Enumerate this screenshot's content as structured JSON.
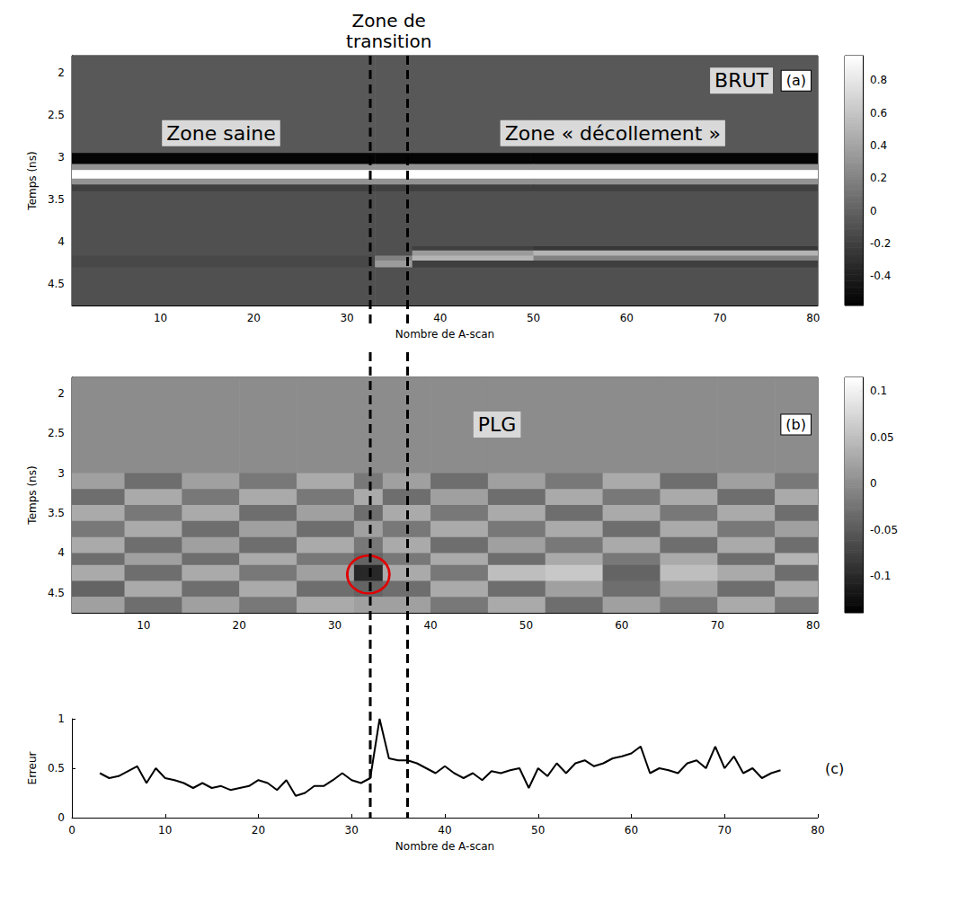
{
  "chart_data": [
    {
      "type": "heatmap",
      "panel": "(a)",
      "text": "BRUT",
      "zones": [
        "Zone saine",
        "Zone de transition",
        "Zone « décollement »"
      ],
      "boundaries": [
        32.5,
        36.5
      ],
      "x_label": "Nombre de A-scan",
      "y_label": "Temps (ns)",
      "xlim": [
        0.5,
        80.5
      ],
      "xticks": [
        10,
        20,
        30,
        40,
        50,
        60,
        70,
        80
      ],
      "ylim": [
        1.8,
        4.75
      ],
      "yticks": [
        2,
        2.5,
        3,
        3.5,
        4,
        4.5
      ],
      "grid": false,
      "cells": {
        "x_edges": [
          0.5,
          33,
          37,
          50,
          80.5
        ],
        "y_edges": [
          1.8,
          2.95,
          3.08,
          3.15,
          3.25,
          3.32,
          3.4,
          4.05,
          4.1,
          4.16,
          4.22,
          4.3,
          4.75
        ],
        "z": [
          [
            -0.05,
            -0.05,
            -0.05,
            -0.05
          ],
          [
            -0.55,
            -0.55,
            -0.55,
            -0.55
          ],
          [
            0.3,
            0.3,
            0.3,
            0.3
          ],
          [
            0.95,
            0.95,
            0.95,
            0.95
          ],
          [
            0.3,
            0.3,
            0.3,
            0.3
          ],
          [
            -0.2,
            -0.2,
            -0.2,
            -0.2
          ],
          [
            -0.1,
            -0.1,
            -0.1,
            -0.1
          ],
          [
            -0.1,
            -0.1,
            -0.2,
            -0.25
          ],
          [
            -0.1,
            -0.1,
            0.35,
            0.5
          ],
          [
            -0.15,
            0.2,
            0.5,
            0.2
          ],
          [
            -0.15,
            0.35,
            -0.2,
            -0.2
          ],
          [
            -0.1,
            -0.1,
            -0.1,
            -0.1
          ]
        ]
      },
      "colorbar": {
        "range": [
          -0.58,
          0.95
        ],
        "ticks": [
          -0.4,
          -0.2,
          0,
          0.2,
          0.4,
          0.6,
          0.8
        ]
      }
    },
    {
      "type": "heatmap",
      "panel": "(b)",
      "text": "PLG",
      "y_label": "Temps (ns)",
      "xlim": [
        2.5,
        80.5
      ],
      "xticks": [
        10,
        20,
        30,
        40,
        50,
        60,
        70,
        80
      ],
      "ylim": [
        1.8,
        4.75
      ],
      "yticks": [
        2,
        2.5,
        3,
        3.5,
        4,
        4.5
      ],
      "grid": false,
      "highlight": {
        "x": 33.5,
        "y": 4.27,
        "color": "#e00000"
      },
      "cells": {
        "x_edges": [
          2.5,
          8,
          14,
          20,
          26,
          32,
          35,
          40,
          46,
          52,
          58,
          64,
          70,
          76,
          80.5
        ],
        "y_edges": [
          1.8,
          3.0,
          3.2,
          3.4,
          3.6,
          3.8,
          4.0,
          4.15,
          4.35,
          4.55,
          4.75
        ],
        "z": [
          [
            0,
            0,
            0,
            0,
            0,
            0,
            0,
            0,
            0,
            0,
            0,
            0,
            0,
            0
          ],
          [
            0.02,
            -0.03,
            0.02,
            -0.02,
            0.03,
            -0.02,
            0.02,
            -0.03,
            0.02,
            -0.02,
            0.03,
            -0.03,
            0.02,
            -0.02
          ],
          [
            -0.03,
            0.03,
            -0.02,
            0.03,
            -0.02,
            0.03,
            -0.03,
            0.02,
            -0.03,
            0.03,
            -0.02,
            0.03,
            -0.03,
            0.03
          ],
          [
            0.03,
            -0.02,
            0.03,
            -0.03,
            0.02,
            -0.03,
            0.03,
            -0.02,
            0.03,
            -0.03,
            0.03,
            -0.02,
            0.03,
            -0.03
          ],
          [
            -0.02,
            0.03,
            -0.03,
            0.02,
            -0.03,
            0.02,
            -0.02,
            0.03,
            -0.02,
            0.03,
            -0.03,
            0.03,
            -0.02,
            0.02
          ],
          [
            0.03,
            -0.03,
            0.02,
            -0.03,
            0.03,
            -0.02,
            0.03,
            -0.03,
            0.02,
            -0.02,
            0.03,
            -0.03,
            0.03,
            -0.03
          ],
          [
            -0.03,
            0.02,
            -0.03,
            0.03,
            -0.02,
            -0.04,
            -0.02,
            0.03,
            -0.03,
            0.03,
            -0.02,
            0.03,
            -0.03,
            0.04
          ],
          [
            0.03,
            -0.03,
            0.03,
            -0.02,
            0.02,
            -0.1,
            0.03,
            -0.02,
            0.05,
            0.06,
            -0.04,
            0.05,
            0.03,
            -0.03
          ],
          [
            -0.04,
            0.03,
            -0.03,
            0.03,
            -0.03,
            -0.04,
            -0.03,
            0.03,
            -0.03,
            0.02,
            -0.03,
            0.02,
            -0.03,
            0.03
          ],
          [
            0.02,
            -0.03,
            0.02,
            -0.02,
            0.03,
            0.02,
            0.02,
            -0.02,
            0.03,
            -0.03,
            0.02,
            -0.02,
            0.03,
            -0.02
          ]
        ]
      },
      "colorbar": {
        "range": [
          -0.14,
          0.115
        ],
        "ticks": [
          -0.1,
          -0.05,
          0,
          0.05,
          0.1
        ]
      }
    },
    {
      "type": "line",
      "panel": "(c)",
      "x_label": "Nombre de A-scan",
      "y_label": "Erreur",
      "xlim": [
        0,
        80
      ],
      "xticks": [
        0,
        10,
        20,
        30,
        40,
        50,
        60,
        70,
        80
      ],
      "ylim": [
        0,
        1
      ],
      "yticks": [
        0,
        0.5,
        1
      ],
      "grid": false,
      "color": "#000000",
      "x": [
        3,
        4,
        5,
        6,
        7,
        8,
        9,
        10,
        11,
        12,
        13,
        14,
        15,
        16,
        17,
        18,
        19,
        20,
        21,
        22,
        23,
        24,
        25,
        26,
        27,
        28,
        29,
        30,
        31,
        32,
        33,
        34,
        35,
        36,
        37,
        38,
        39,
        40,
        41,
        42,
        43,
        44,
        45,
        46,
        47,
        48,
        49,
        50,
        51,
        52,
        53,
        54,
        55,
        56,
        57,
        58,
        59,
        60,
        61,
        62,
        63,
        64,
        65,
        66,
        67,
        68,
        69,
        70,
        71,
        72,
        73,
        74,
        75,
        76
      ],
      "values": [
        0.45,
        0.4,
        0.42,
        0.47,
        0.52,
        0.35,
        0.5,
        0.4,
        0.38,
        0.35,
        0.3,
        0.35,
        0.3,
        0.32,
        0.28,
        0.3,
        0.32,
        0.38,
        0.35,
        0.28,
        0.38,
        0.22,
        0.25,
        0.32,
        0.32,
        0.38,
        0.45,
        0.38,
        0.35,
        0.4,
        1,
        0.6,
        0.58,
        0.58,
        0.55,
        0.5,
        0.45,
        0.52,
        0.45,
        0.4,
        0.45,
        0.38,
        0.47,
        0.45,
        0.48,
        0.5,
        0.3,
        0.5,
        0.42,
        0.55,
        0.45,
        0.55,
        0.58,
        0.52,
        0.55,
        0.6,
        0.62,
        0.65,
        0.72,
        0.45,
        0.5,
        0.48,
        0.45,
        0.55,
        0.58,
        0.5,
        0.72,
        0.5,
        0.62,
        0.45,
        0.5,
        0.4,
        0.45,
        0.48
      ]
    }
  ]
}
